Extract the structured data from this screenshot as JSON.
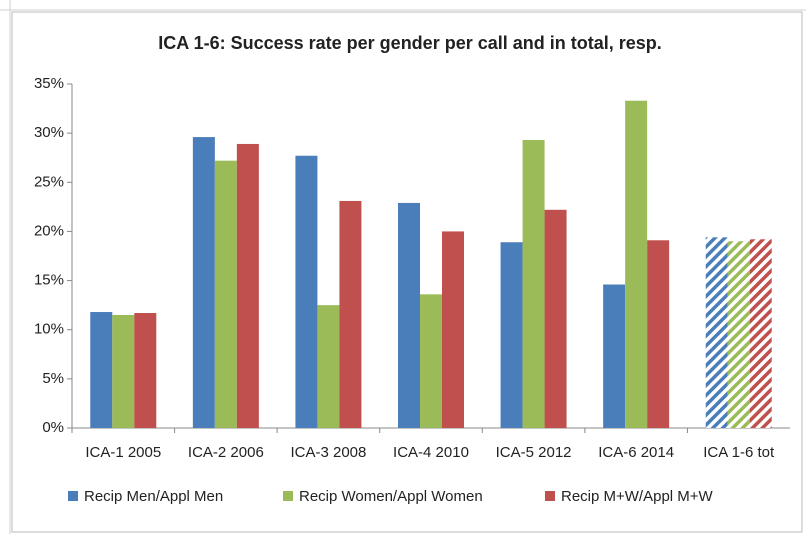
{
  "chart_data": {
    "type": "bar",
    "title": "ICA 1-6:  Success rate per gender per call and in total, resp.",
    "categories": [
      "ICA-1 2005",
      "ICA-2 2006",
      "ICA-3 2008",
      "ICA-4 2010",
      "ICA-5 2012",
      "ICA-6 2014",
      "ICA 1-6 tot"
    ],
    "series": [
      {
        "name": "Recip Men/Appl Men",
        "color": "#4a7ebb",
        "values": [
          11.8,
          29.6,
          27.7,
          22.9,
          18.9,
          14.6,
          19.4
        ]
      },
      {
        "name": "Recip Women/Appl Women",
        "color": "#9bbb59",
        "values": [
          11.5,
          27.2,
          12.5,
          13.6,
          29.3,
          33.3,
          19.0
        ]
      },
      {
        "name": "Recip M+W/Appl M+W",
        "color": "#c0504d",
        "values": [
          11.7,
          28.9,
          23.1,
          20.0,
          22.2,
          19.1,
          19.2
        ]
      }
    ],
    "ylim": [
      0,
      35
    ],
    "yticks": [
      {
        "value": 0,
        "label": "0%"
      },
      {
        "value": 5,
        "label": "5%"
      },
      {
        "value": 10,
        "label": "10%"
      },
      {
        "value": 15,
        "label": "15%"
      },
      {
        "value": 20,
        "label": "20%"
      },
      {
        "value": 25,
        "label": "25%"
      },
      {
        "value": 30,
        "label": "30%"
      },
      {
        "value": 35,
        "label": "35%"
      }
    ],
    "grid": false,
    "hatched_category_index": 6,
    "legend": "bottom"
  }
}
